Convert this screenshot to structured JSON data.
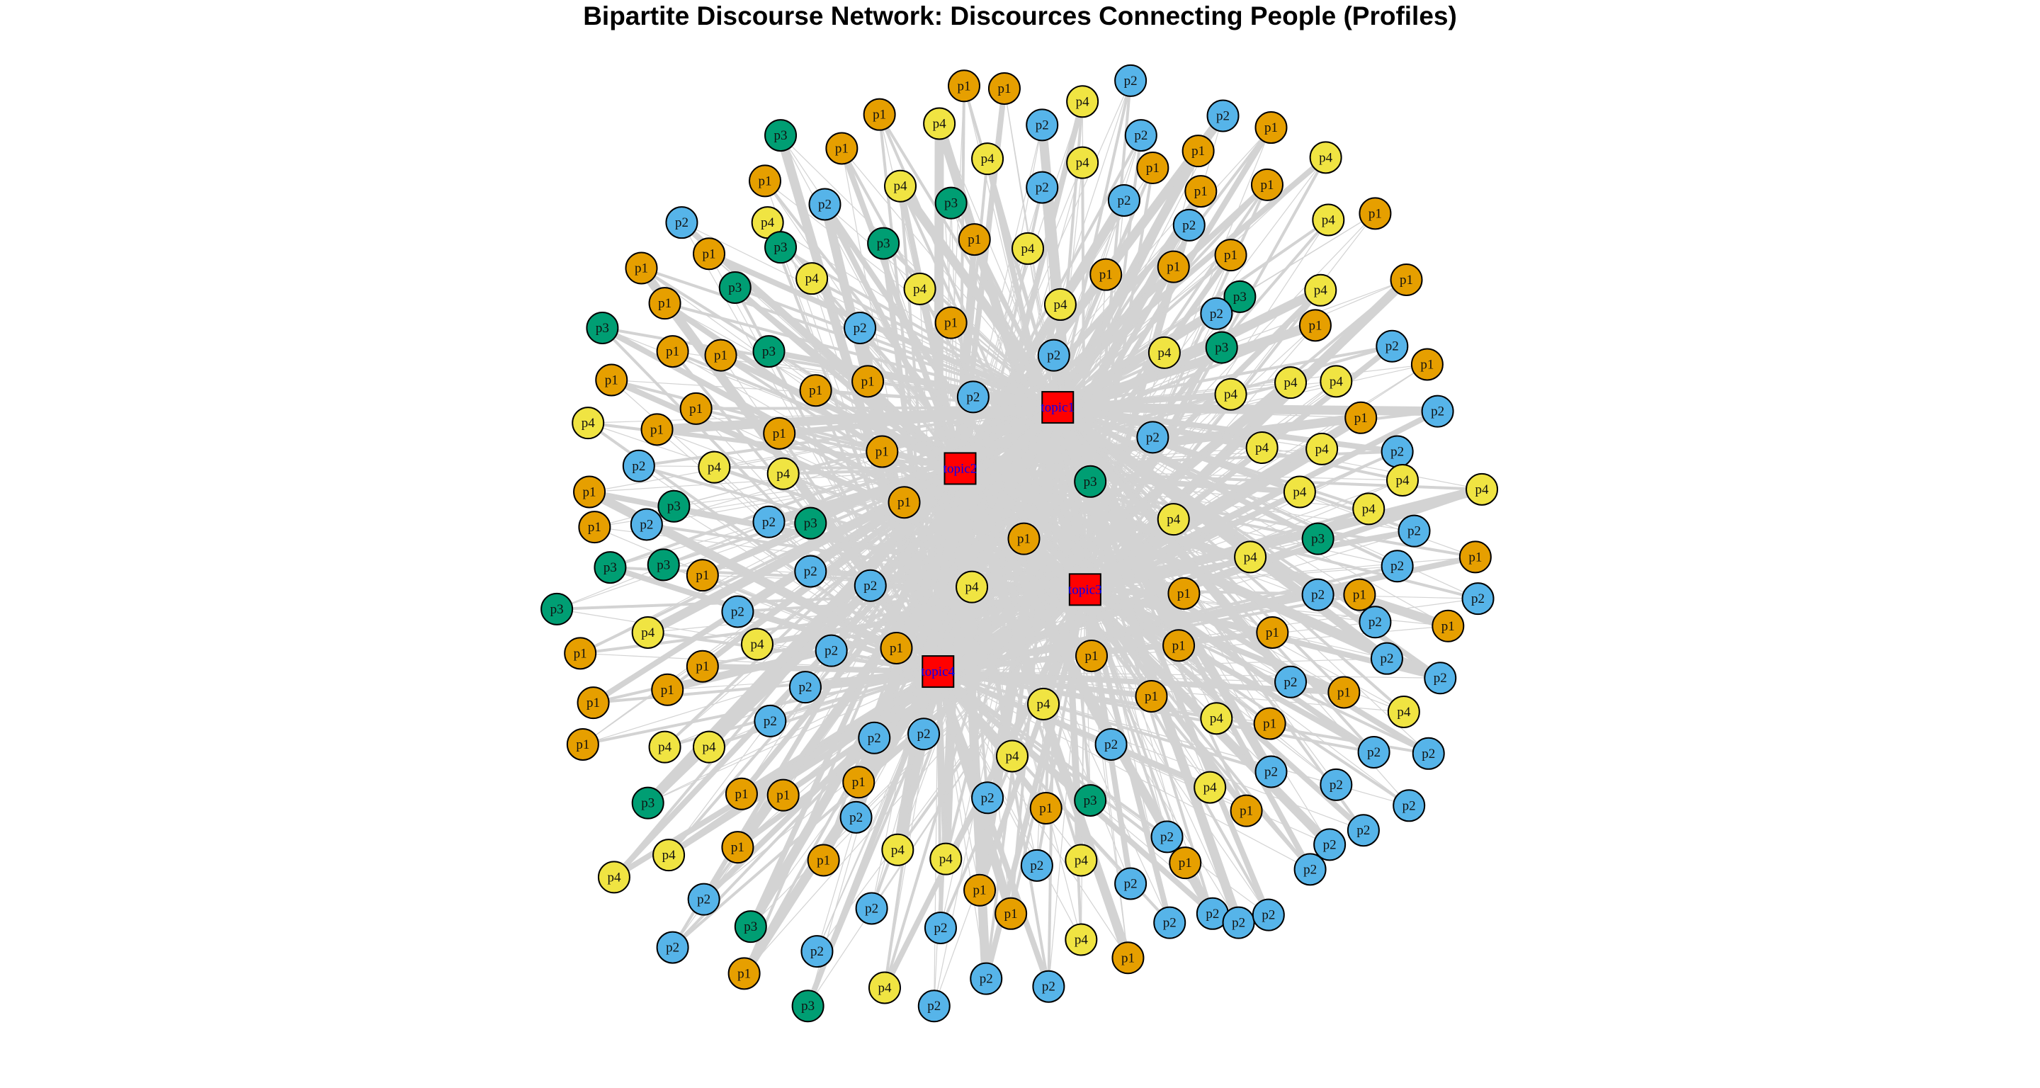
{
  "title": "Bipartite Discourse Network: Discources Connecting People (Profiles)",
  "colors": {
    "background": "#ffffff",
    "edge": "#d3d3d3",
    "topic_fill": "#ff0000",
    "topic_label": "#0000ff",
    "node_border": "#000000",
    "p1": "#E69F00",
    "p2": "#56B4E9",
    "p3": "#009E73",
    "p4": "#F0E442"
  },
  "topics": [
    "topic1",
    "topic2",
    "topic3",
    "topic4"
  ],
  "profiles": [
    "p1",
    "p2",
    "p3",
    "p4"
  ]
}
